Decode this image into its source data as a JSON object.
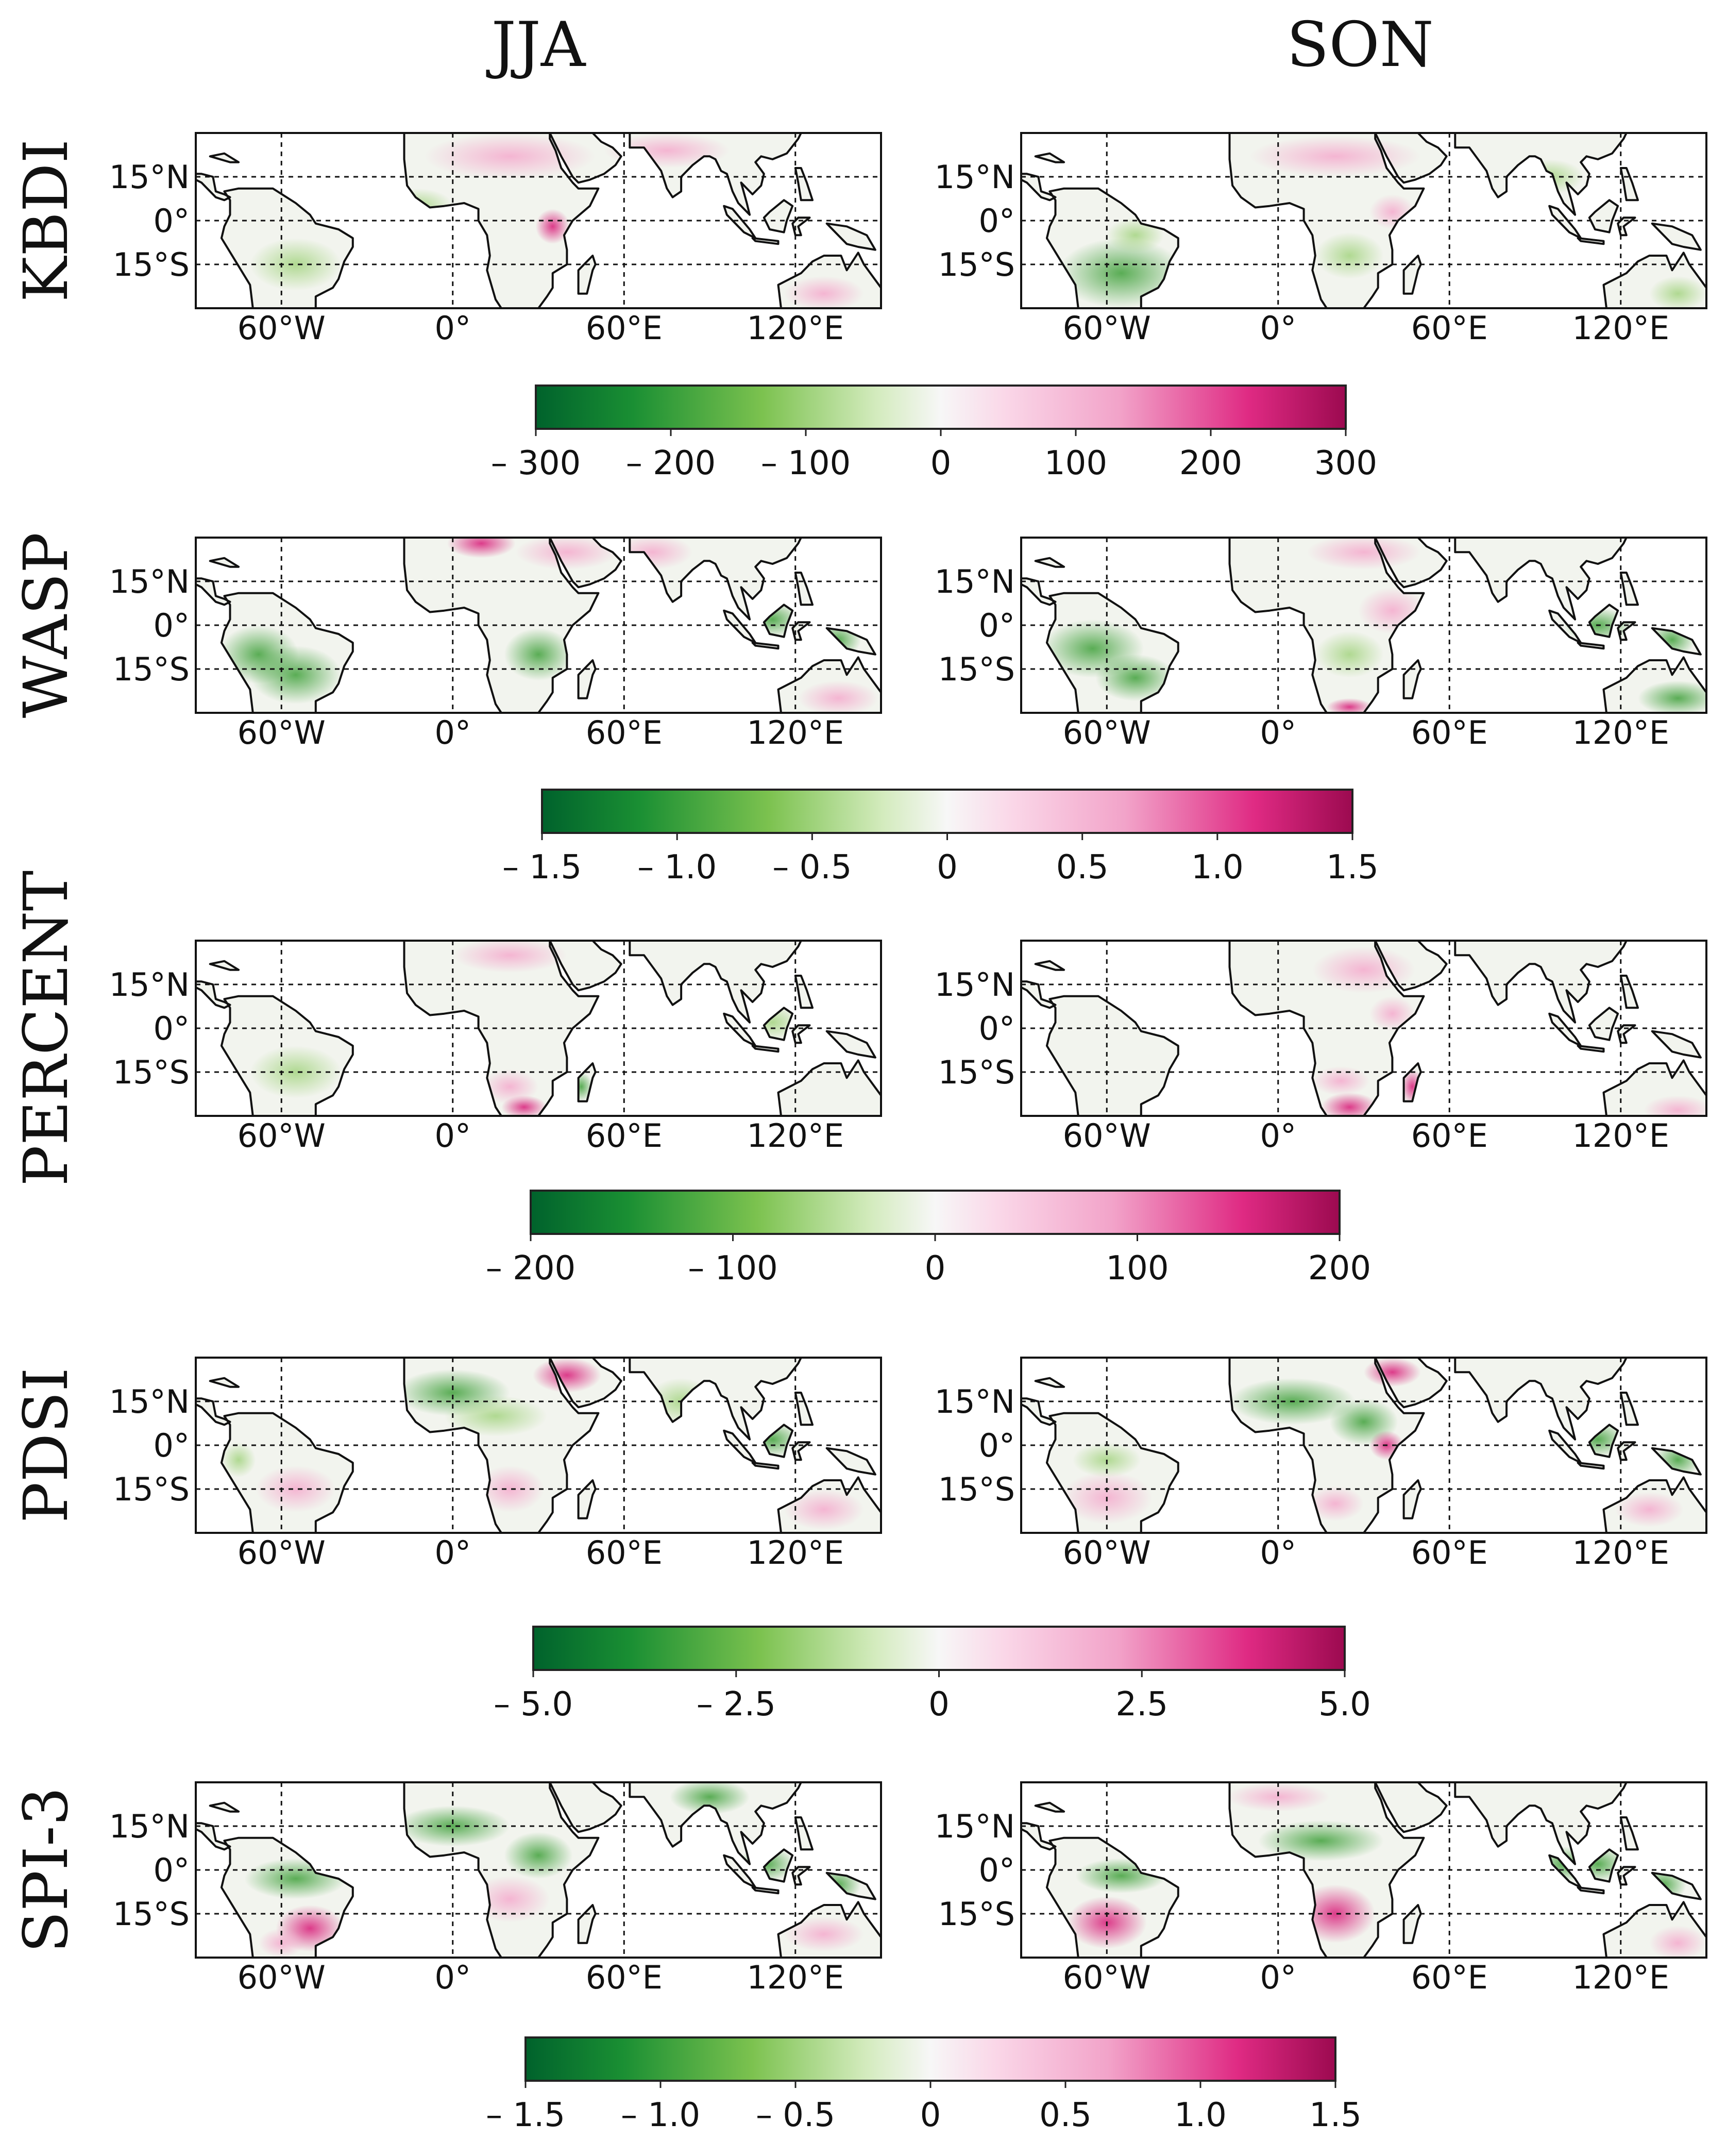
{
  "chart_data": {
    "type": "heatmap",
    "description_kind": "seasonal anomaly maps, rows = drought indices, columns = seasons",
    "columns": [
      "JJA",
      "SON"
    ],
    "rows": [
      {
        "index": "KBDI",
        "colorbar": {
          "min": -300,
          "max": 300,
          "ticks": [
            "– 300",
            "– 200",
            "– 100",
            "0",
            "100",
            "200",
            "300"
          ]
        }
      },
      {
        "index": "WASP",
        "colorbar": {
          "min": -1.5,
          "max": 1.5,
          "ticks": [
            "– 1.5",
            "– 1.0",
            "– 0.5",
            "0",
            "0.5",
            "1.0",
            "1.5"
          ]
        }
      },
      {
        "index": "PERCENT",
        "colorbar": {
          "min": -200,
          "max": 200,
          "ticks": [
            "– 200",
            "– 100",
            "0",
            "100",
            "200"
          ]
        }
      },
      {
        "index": "PDSI",
        "colorbar": {
          "min": -5.0,
          "max": 5.0,
          "ticks": [
            "– 5.0",
            "– 2.5",
            "0",
            "2.5",
            "5.0"
          ]
        }
      },
      {
        "index": "SPI-3",
        "colorbar": {
          "min": -1.5,
          "max": 1.5,
          "ticks": [
            "– 1.5",
            "– 1.0",
            "– 0.5",
            "0",
            "0.5",
            "1.0",
            "1.5"
          ]
        }
      }
    ],
    "lat_ticks": [
      "15°N",
      "0°",
      "15°S"
    ],
    "lon_ticks": [
      "60°W",
      "0°",
      "60°E",
      "120°E"
    ],
    "lat_range": [
      -30,
      30
    ],
    "lon_range": [
      -90,
      150
    ],
    "colormap": {
      "low": "#00682f",
      "mid": "#f7f7f7",
      "high": "#a8005a"
    },
    "grid": true
  }
}
